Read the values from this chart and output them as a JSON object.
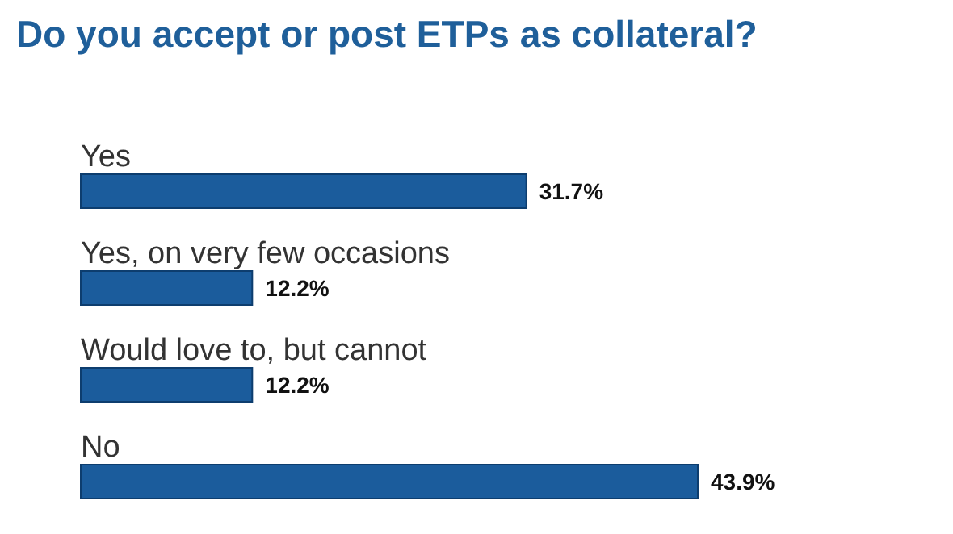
{
  "chart_data": {
    "type": "bar",
    "orientation": "horizontal",
    "title": "Do you accept or post ETPs as collateral?",
    "categories": [
      "Yes",
      "Yes, on very few occasions",
      "Would love to, but cannot",
      "No"
    ],
    "values": [
      31.7,
      12.2,
      12.2,
      43.9
    ],
    "value_labels": [
      "31.7%",
      "12.2%",
      "12.2%",
      "43.9%"
    ],
    "color": "#1b5c9c",
    "grid": false,
    "legend": false
  }
}
